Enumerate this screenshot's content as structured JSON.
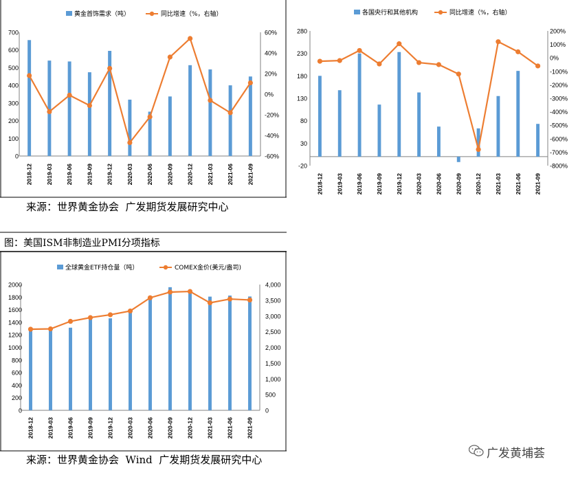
{
  "colors": {
    "bar": "#5B9BD5",
    "line": "#ED7D31",
    "axis": "#808080",
    "text": "#000000"
  },
  "source_top": "来源：世界黄金协会  广发期货发展研究中心",
  "caption": "图：美国ISM非制造业PMI分项指标",
  "source_bottom": "来源：世界黄金协会  Wind  广发期货发展研究中心",
  "watermark": "广发黄埔荟",
  "watermark_icon": "wechat-icon",
  "chart_data": [
    {
      "type": "bar",
      "categories": [
        "2018-12",
        "2019-03",
        "2019-06",
        "2019-09",
        "2019-12",
        "2020-03",
        "2020-06",
        "2020-09",
        "2020-12",
        "2021-03",
        "2021-06",
        "2021-09"
      ],
      "series": [
        {
          "name": "黄金首饰需求（吨）",
          "kind": "bar",
          "axis": "left",
          "values": [
            656,
            540,
            535,
            474,
            595,
            319,
            251,
            337,
            514,
            490,
            400,
            450
          ]
        },
        {
          "name": "同比增速（%，右轴）",
          "kind": "line",
          "axis": "right",
          "values": [
            18,
            -17,
            -1,
            -11,
            25,
            -47,
            -22,
            36,
            54,
            -6,
            -18,
            11
          ]
        }
      ],
      "left_axis": {
        "min": 0,
        "max": 700,
        "step": 100,
        "labels": [
          "0",
          "100",
          "200",
          "300",
          "400",
          "500",
          "600",
          "700"
        ]
      },
      "right_axis": {
        "min": -60,
        "max": 60,
        "step": 20,
        "labels": [
          "-60%",
          "-40%",
          "-20%",
          "0%",
          "20%",
          "40%",
          "60%"
        ]
      },
      "legend_position": "top"
    },
    {
      "type": "bar",
      "categories": [
        "2018-12",
        "2019-03",
        "2019-06",
        "2019-09",
        "2019-12",
        "2020-03",
        "2020-06",
        "2020-09",
        "2020-12",
        "2021-03",
        "2021-06",
        "2021-09"
      ],
      "series": [
        {
          "name": "各国央行和其他机构",
          "kind": "bar",
          "axis": "left",
          "values": [
            180,
            148,
            230,
            116,
            233,
            143,
            67,
            -12,
            63,
            135,
            191,
            73
          ]
        },
        {
          "name": "同比增速（%，右轴）",
          "kind": "line",
          "axis": "right",
          "values": [
            -25,
            -20,
            55,
            -45,
            105,
            -35,
            -50,
            -120,
            -680,
            120,
            45,
            -60
          ]
        }
      ],
      "left_axis": {
        "min": -20,
        "max": 280,
        "step": 50,
        "labels": [
          "-20",
          "30",
          "80",
          "130",
          "180",
          "230",
          "280"
        ]
      },
      "right_axis": {
        "min": -800,
        "max": 200,
        "step": 100,
        "labels": [
          "-800%",
          "-700%",
          "-600%",
          "-500%",
          "-400%",
          "-300%",
          "-200%",
          "-100%",
          "0%",
          "100%",
          "200%"
        ]
      },
      "legend_position": "top"
    },
    {
      "type": "bar",
      "categories": [
        "2018-12",
        "2019-03",
        "2019-06",
        "2019-09",
        "2019-12",
        "2020-03",
        "2020-06",
        "2020-09",
        "2020-12",
        "2021-03",
        "2021-06",
        "2021-09"
      ],
      "series": [
        {
          "name": "全球黄金ETF持仓量（吨）",
          "kind": "bar",
          "axis": "left",
          "values": [
            1262,
            1268,
            1314,
            1460,
            1463,
            1582,
            1790,
            1958,
            1892,
            1808,
            1825,
            1810
          ]
        },
        {
          "name": "COMEX金价(美元/盎司)",
          "kind": "line",
          "axis": "right",
          "values": [
            2580,
            2590,
            2830,
            2950,
            3040,
            3160,
            3580,
            3760,
            3780,
            3420,
            3540,
            3510
          ]
        }
      ],
      "left_axis": {
        "min": 0,
        "max": 2000,
        "step": 200,
        "labels": [
          "0",
          "200",
          "400",
          "600",
          "800",
          "1000",
          "1200",
          "1400",
          "1600",
          "1800",
          "2000"
        ]
      },
      "right_axis": {
        "min": 0,
        "max": 4000,
        "step": 500,
        "labels": [
          "0",
          "500",
          "1,000",
          "1,500",
          "2,000",
          "2,500",
          "3,000",
          "3,500",
          "4,000"
        ]
      },
      "legend_position": "top"
    }
  ]
}
